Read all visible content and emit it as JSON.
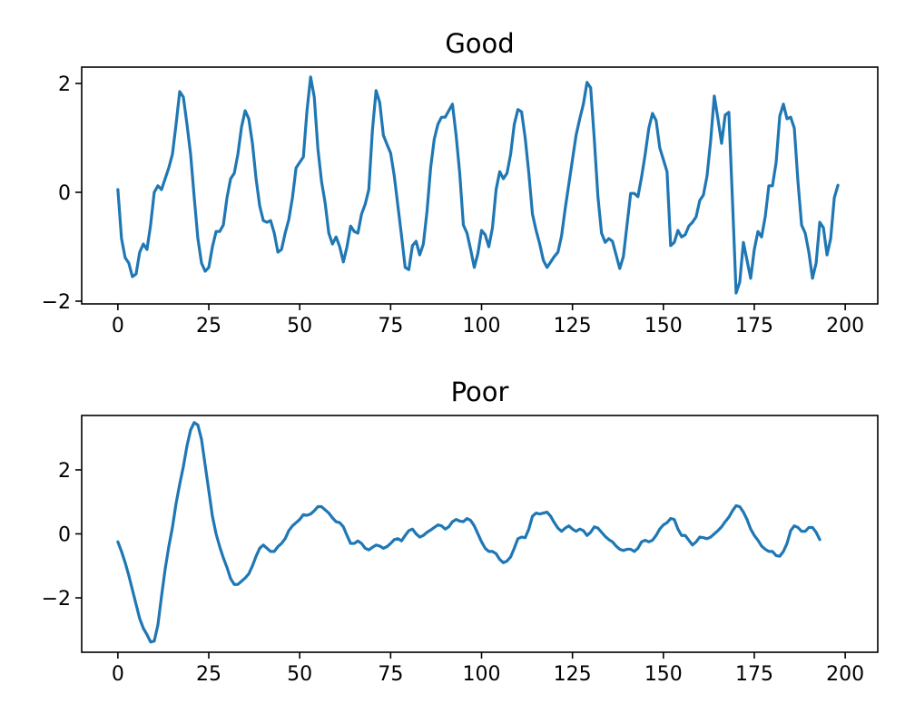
{
  "chart_data": [
    {
      "type": "line",
      "title": "Good",
      "xlabel": "",
      "ylabel": "",
      "xlim": [
        -9.95,
        208.95
      ],
      "ylim": [
        -2.05,
        2.3
      ],
      "xticks": [
        0,
        25,
        50,
        75,
        100,
        125,
        150,
        175,
        200
      ],
      "yticks": [
        -2,
        0,
        2
      ],
      "grid": false,
      "color": "#1f77b4",
      "series": [
        {
          "x_start": 0,
          "x_step": 1,
          "values": [
            0.05,
            -0.85,
            -1.2,
            -1.3,
            -1.55,
            -1.5,
            -1.1,
            -0.95,
            -1.05,
            -0.6,
            0.0,
            0.12,
            0.05,
            0.25,
            0.45,
            0.7,
            1.25,
            1.85,
            1.75,
            1.25,
            0.7,
            -0.1,
            -0.85,
            -1.3,
            -1.45,
            -1.38,
            -1.0,
            -0.72,
            -0.72,
            -0.6,
            -0.1,
            0.25,
            0.35,
            0.7,
            1.2,
            1.5,
            1.35,
            0.9,
            0.25,
            -0.25,
            -0.52,
            -0.55,
            -0.52,
            -0.75,
            -1.1,
            -1.05,
            -0.75,
            -0.5,
            -0.1,
            0.45,
            0.55,
            0.65,
            1.5,
            2.12,
            1.75,
            0.8,
            0.2,
            -0.2,
            -0.75,
            -0.95,
            -0.82,
            -1.0,
            -1.28,
            -1.0,
            -0.62,
            -0.72,
            -0.75,
            -0.4,
            -0.22,
            0.05,
            1.15,
            1.87,
            1.65,
            1.05,
            0.88,
            0.72,
            0.3,
            -0.25,
            -0.8,
            -1.38,
            -1.42,
            -0.98,
            -0.9,
            -1.15,
            -0.95,
            -0.35,
            0.45,
            0.98,
            1.25,
            1.38,
            1.38,
            1.5,
            1.62,
            1.05,
            0.35,
            -0.6,
            -0.75,
            -1.05,
            -1.38,
            -1.12,
            -0.7,
            -0.78,
            -1.0,
            -0.65,
            0.05,
            0.38,
            0.25,
            0.35,
            0.7,
            1.25,
            1.52,
            1.48,
            1.0,
            0.35,
            -0.4,
            -0.7,
            -0.95,
            -1.25,
            -1.38,
            -1.28,
            -1.18,
            -1.1,
            -0.8,
            -0.3,
            0.15,
            0.6,
            1.05,
            1.35,
            1.62,
            2.02,
            1.92,
            0.98,
            -0.08,
            -0.75,
            -0.92,
            -0.85,
            -0.9,
            -1.15,
            -1.4,
            -1.18,
            -0.6,
            -0.02,
            -0.02,
            -0.08,
            0.28,
            0.7,
            1.18,
            1.45,
            1.32,
            0.82,
            0.6,
            0.38,
            -0.98,
            -0.92,
            -0.7,
            -0.82,
            -0.78,
            -0.62,
            -0.55,
            -0.45,
            -0.15,
            -0.05,
            0.3,
            0.95,
            1.77,
            1.35,
            0.9,
            1.42,
            1.47,
            -0.15,
            -1.85,
            -1.65,
            -0.92,
            -1.25,
            -1.58,
            -1.05,
            -0.72,
            -0.82,
            -0.45,
            0.12,
            0.12,
            0.55,
            1.4,
            1.62,
            1.35,
            1.38,
            1.18,
            0.2,
            -0.6,
            -0.75,
            -1.1,
            -1.58,
            -1.3,
            -0.55,
            -0.65,
            -1.15,
            -0.85,
            -0.1,
            0.13
          ]
        }
      ]
    },
    {
      "type": "line",
      "title": "Poor",
      "xlabel": "",
      "ylabel": "",
      "xlim": [
        -9.95,
        208.95
      ],
      "ylim": [
        -3.7,
        3.7
      ],
      "xticks": [
        0,
        25,
        50,
        75,
        100,
        125,
        150,
        175,
        200
      ],
      "yticks": [
        -2,
        0,
        2
      ],
      "grid": false,
      "color": "#1f77b4",
      "series": [
        {
          "x_start": 0,
          "x_step": 1,
          "values": [
            -0.25,
            -0.55,
            -0.9,
            -1.3,
            -1.75,
            -2.2,
            -2.65,
            -2.95,
            -3.15,
            -3.38,
            -3.35,
            -2.85,
            -1.95,
            -1.1,
            -0.4,
            0.2,
            0.95,
            1.55,
            2.1,
            2.75,
            3.25,
            3.48,
            3.4,
            2.95,
            2.15,
            1.35,
            0.55,
            0.0,
            -0.4,
            -0.75,
            -1.05,
            -1.4,
            -1.58,
            -1.58,
            -1.48,
            -1.38,
            -1.25,
            -1.0,
            -0.7,
            -0.45,
            -0.35,
            -0.45,
            -0.55,
            -0.55,
            -0.4,
            -0.3,
            -0.15,
            0.1,
            0.25,
            0.35,
            0.45,
            0.6,
            0.58,
            0.62,
            0.72,
            0.85,
            0.85,
            0.75,
            0.65,
            0.5,
            0.38,
            0.35,
            0.22,
            -0.05,
            -0.3,
            -0.3,
            -0.22,
            -0.3,
            -0.45,
            -0.5,
            -0.42,
            -0.35,
            -0.38,
            -0.45,
            -0.4,
            -0.3,
            -0.18,
            -0.15,
            -0.22,
            -0.05,
            0.1,
            0.15,
            0.0,
            -0.1,
            -0.05,
            0.05,
            0.12,
            0.2,
            0.28,
            0.25,
            0.15,
            0.22,
            0.38,
            0.45,
            0.4,
            0.38,
            0.48,
            0.42,
            0.25,
            0.0,
            -0.25,
            -0.45,
            -0.55,
            -0.55,
            -0.62,
            -0.8,
            -0.9,
            -0.85,
            -0.72,
            -0.45,
            -0.15,
            -0.1,
            -0.12,
            0.15,
            0.55,
            0.65,
            0.62,
            0.65,
            0.68,
            0.55,
            0.35,
            0.18,
            0.08,
            0.18,
            0.25,
            0.15,
            0.08,
            0.15,
            0.1,
            -0.05,
            0.05,
            0.22,
            0.18,
            0.05,
            -0.08,
            -0.18,
            -0.25,
            -0.38,
            -0.48,
            -0.52,
            -0.48,
            -0.48,
            -0.55,
            -0.45,
            -0.25,
            -0.2,
            -0.25,
            -0.2,
            -0.05,
            0.15,
            0.28,
            0.35,
            0.48,
            0.45,
            0.15,
            -0.05,
            -0.05,
            -0.2,
            -0.35,
            -0.25,
            -0.1,
            -0.12,
            -0.15,
            -0.1,
            0.0,
            0.1,
            0.22,
            0.38,
            0.52,
            0.72,
            0.88,
            0.85,
            0.68,
            0.45,
            0.15,
            -0.05,
            -0.2,
            -0.38,
            -0.48,
            -0.55,
            -0.55,
            -0.68,
            -0.7,
            -0.55,
            -0.3,
            0.1,
            0.25,
            0.2,
            0.08,
            0.08,
            0.2,
            0.2,
            0.05,
            -0.18
          ]
        }
      ]
    }
  ]
}
